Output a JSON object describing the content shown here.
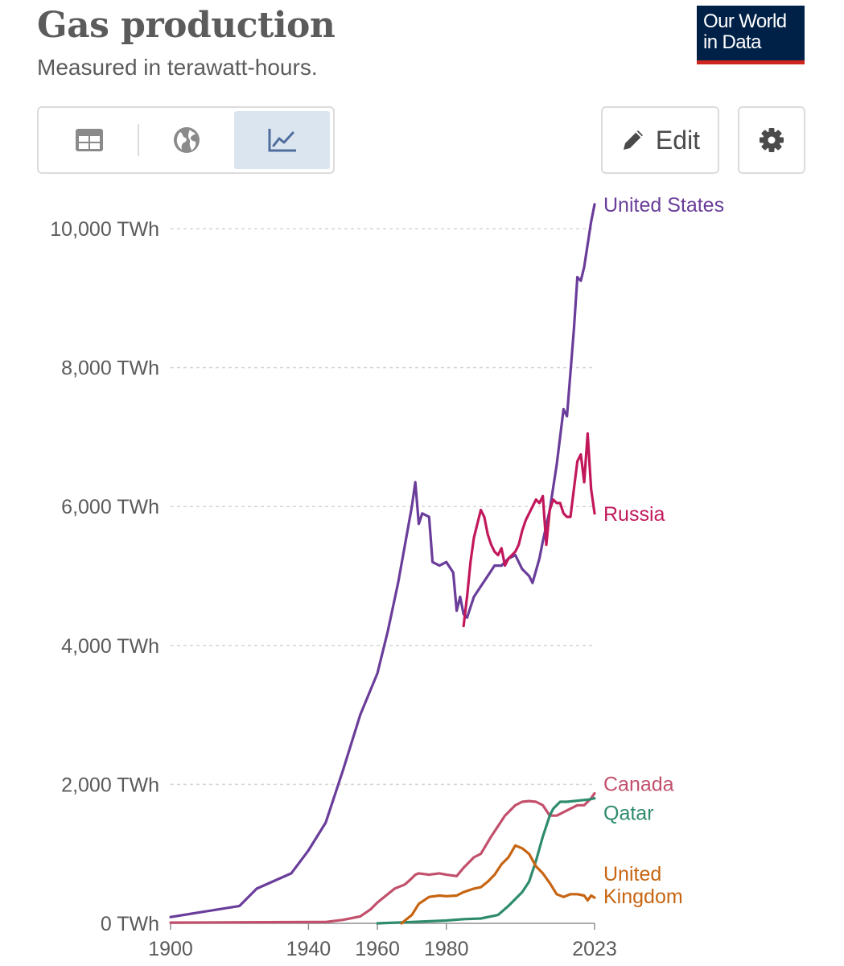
{
  "header": {
    "title": "Gas production",
    "subtitle": "Measured in terawatt-hours."
  },
  "logo": {
    "line1": "Our World",
    "line2": "in Data"
  },
  "tabs": [
    {
      "icon": "table-icon",
      "active": false
    },
    {
      "icon": "globe-icon",
      "active": false
    },
    {
      "icon": "line-chart-icon",
      "active": true
    }
  ],
  "toolbar": {
    "edit_label": "Edit",
    "edit_icon": "pencil-icon",
    "settings_icon": "gear-icon"
  },
  "colors": {
    "text": "#5b5b5b",
    "grid": "#d6d6d6",
    "logo_bg": "#002147",
    "logo_accent": "#ce261e",
    "active_tab": "#dbe5f0"
  },
  "chart_data": {
    "type": "line",
    "title": "Gas production",
    "subtitle": "Measured in terawatt-hours.",
    "unit": "TWh",
    "xlim": [
      1900,
      2023
    ],
    "ylim": [
      0,
      10400
    ],
    "x_ticks": [
      "1900",
      "1940",
      "1960",
      "1980",
      "2023"
    ],
    "y_ticks": [
      "0 TWh",
      "2,000 TWh",
      "4,000 TWh",
      "6,000 TWh",
      "8,000 TWh",
      "10,000 TWh"
    ],
    "y_tick_values": [
      0,
      2000,
      4000,
      6000,
      8000,
      10000
    ],
    "grid": "horizontal dashed",
    "legend": "inline labels at line ends",
    "series": [
      {
        "name": "United States",
        "color": "#6a3d9a",
        "points": [
          [
            1900,
            90
          ],
          [
            1920,
            250
          ],
          [
            1925,
            500
          ],
          [
            1935,
            720
          ],
          [
            1940,
            1050
          ],
          [
            1945,
            1450
          ],
          [
            1950,
            2200
          ],
          [
            1955,
            3000
          ],
          [
            1960,
            3600
          ],
          [
            1963,
            4200
          ],
          [
            1966,
            4900
          ],
          [
            1970,
            6000
          ],
          [
            1971,
            6350
          ],
          [
            1972,
            5750
          ],
          [
            1973,
            5900
          ],
          [
            1975,
            5850
          ],
          [
            1976,
            5200
          ],
          [
            1978,
            5150
          ],
          [
            1980,
            5200
          ],
          [
            1982,
            5050
          ],
          [
            1983,
            4500
          ],
          [
            1984,
            4700
          ],
          [
            1985,
            4450
          ],
          [
            1986,
            4400
          ],
          [
            1988,
            4700
          ],
          [
            1990,
            4850
          ],
          [
            1992,
            5000
          ],
          [
            1994,
            5150
          ],
          [
            1996,
            5150
          ],
          [
            1998,
            5250
          ],
          [
            2000,
            5300
          ],
          [
            2002,
            5100
          ],
          [
            2004,
            5000
          ],
          [
            2005,
            4900
          ],
          [
            2007,
            5250
          ],
          [
            2008,
            5500
          ],
          [
            2010,
            5950
          ],
          [
            2012,
            6600
          ],
          [
            2014,
            7400
          ],
          [
            2015,
            7300
          ],
          [
            2017,
            8550
          ],
          [
            2018,
            9300
          ],
          [
            2019,
            9250
          ],
          [
            2020,
            9450
          ],
          [
            2022,
            10100
          ],
          [
            2023,
            10350
          ]
        ]
      },
      {
        "name": "Russia",
        "color": "#c2185b",
        "points": [
          [
            1985,
            4280
          ],
          [
            1986,
            4700
          ],
          [
            1987,
            5200
          ],
          [
            1988,
            5550
          ],
          [
            1990,
            5950
          ],
          [
            1991,
            5850
          ],
          [
            1992,
            5600
          ],
          [
            1993,
            5450
          ],
          [
            1994,
            5350
          ],
          [
            1995,
            5300
          ],
          [
            1996,
            5400
          ],
          [
            1997,
            5150
          ],
          [
            1998,
            5250
          ],
          [
            1999,
            5300
          ],
          [
            2000,
            5350
          ],
          [
            2001,
            5450
          ],
          [
            2002,
            5650
          ],
          [
            2003,
            5800
          ],
          [
            2004,
            5900
          ],
          [
            2005,
            6000
          ],
          [
            2006,
            6100
          ],
          [
            2007,
            6050
          ],
          [
            2008,
            6150
          ],
          [
            2009,
            5450
          ],
          [
            2010,
            5950
          ],
          [
            2011,
            6100
          ],
          [
            2012,
            6050
          ],
          [
            2013,
            6050
          ],
          [
            2014,
            5900
          ],
          [
            2015,
            5850
          ],
          [
            2016,
            5850
          ],
          [
            2017,
            6250
          ],
          [
            2018,
            6650
          ],
          [
            2019,
            6750
          ],
          [
            2020,
            6350
          ],
          [
            2021,
            7050
          ],
          [
            2022,
            6250
          ],
          [
            2023,
            5900
          ]
        ]
      },
      {
        "name": "Canada",
        "color": "#c2506c",
        "points": [
          [
            1900,
            10
          ],
          [
            1945,
            20
          ],
          [
            1950,
            50
          ],
          [
            1955,
            100
          ],
          [
            1958,
            200
          ],
          [
            1960,
            300
          ],
          [
            1962,
            380
          ],
          [
            1965,
            500
          ],
          [
            1968,
            560
          ],
          [
            1970,
            650
          ],
          [
            1971,
            700
          ],
          [
            1972,
            720
          ],
          [
            1975,
            700
          ],
          [
            1978,
            720
          ],
          [
            1980,
            700
          ],
          [
            1983,
            680
          ],
          [
            1985,
            800
          ],
          [
            1988,
            950
          ],
          [
            1990,
            1000
          ],
          [
            1993,
            1250
          ],
          [
            1995,
            1400
          ],
          [
            1997,
            1550
          ],
          [
            2000,
            1700
          ],
          [
            2002,
            1750
          ],
          [
            2004,
            1760
          ],
          [
            2006,
            1750
          ],
          [
            2008,
            1700
          ],
          [
            2010,
            1550
          ],
          [
            2012,
            1550
          ],
          [
            2014,
            1600
          ],
          [
            2016,
            1650
          ],
          [
            2018,
            1700
          ],
          [
            2020,
            1700
          ],
          [
            2022,
            1800
          ],
          [
            2023,
            1870
          ]
        ]
      },
      {
        "name": "Qatar",
        "color": "#2e8b6e",
        "points": [
          [
            1960,
            0
          ],
          [
            1970,
            20
          ],
          [
            1980,
            40
          ],
          [
            1985,
            60
          ],
          [
            1990,
            70
          ],
          [
            1995,
            120
          ],
          [
            1998,
            250
          ],
          [
            2000,
            350
          ],
          [
            2002,
            450
          ],
          [
            2004,
            600
          ],
          [
            2006,
            900
          ],
          [
            2008,
            1250
          ],
          [
            2010,
            1550
          ],
          [
            2011,
            1650
          ],
          [
            2013,
            1750
          ],
          [
            2015,
            1750
          ],
          [
            2017,
            1760
          ],
          [
            2019,
            1770
          ],
          [
            2021,
            1780
          ],
          [
            2023,
            1800
          ]
        ]
      },
      {
        "name": "United Kingdom",
        "color": "#c76512",
        "points": [
          [
            1967,
            0
          ],
          [
            1968,
            40
          ],
          [
            1970,
            120
          ],
          [
            1972,
            280
          ],
          [
            1975,
            380
          ],
          [
            1978,
            400
          ],
          [
            1980,
            390
          ],
          [
            1983,
            400
          ],
          [
            1985,
            450
          ],
          [
            1988,
            500
          ],
          [
            1990,
            520
          ],
          [
            1992,
            600
          ],
          [
            1994,
            700
          ],
          [
            1996,
            850
          ],
          [
            1998,
            950
          ],
          [
            2000,
            1120
          ],
          [
            2002,
            1080
          ],
          [
            2004,
            1000
          ],
          [
            2006,
            820
          ],
          [
            2008,
            720
          ],
          [
            2010,
            580
          ],
          [
            2012,
            420
          ],
          [
            2014,
            380
          ],
          [
            2016,
            420
          ],
          [
            2018,
            420
          ],
          [
            2020,
            400
          ],
          [
            2021,
            330
          ],
          [
            2022,
            400
          ],
          [
            2023,
            370
          ]
        ]
      }
    ]
  }
}
